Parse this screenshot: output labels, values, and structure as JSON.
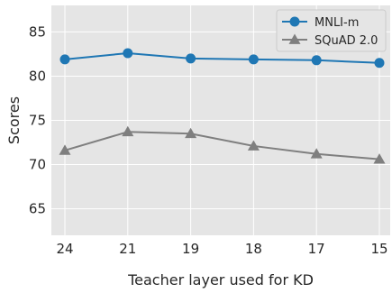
{
  "chart_data": {
    "type": "line",
    "title": "",
    "xlabel": "Teacher layer used for KD",
    "ylabel": "Scores",
    "categories": [
      "24",
      "21",
      "19",
      "18",
      "17",
      "15"
    ],
    "ylim": [
      62,
      88
    ],
    "yticks": [
      65,
      70,
      75,
      80,
      85
    ],
    "grid": true,
    "legend_position": "top-right",
    "series": [
      {
        "name": "MNLI-m",
        "values": [
          81.9,
          82.6,
          82.0,
          81.9,
          81.8,
          81.5
        ],
        "color": "#1f77b4",
        "marker": "circle"
      },
      {
        "name": "SQuAD 2.0",
        "values": [
          71.6,
          73.7,
          73.5,
          72.1,
          71.2,
          70.6
        ],
        "color": "#7f7f7f",
        "marker": "triangle"
      }
    ]
  }
}
